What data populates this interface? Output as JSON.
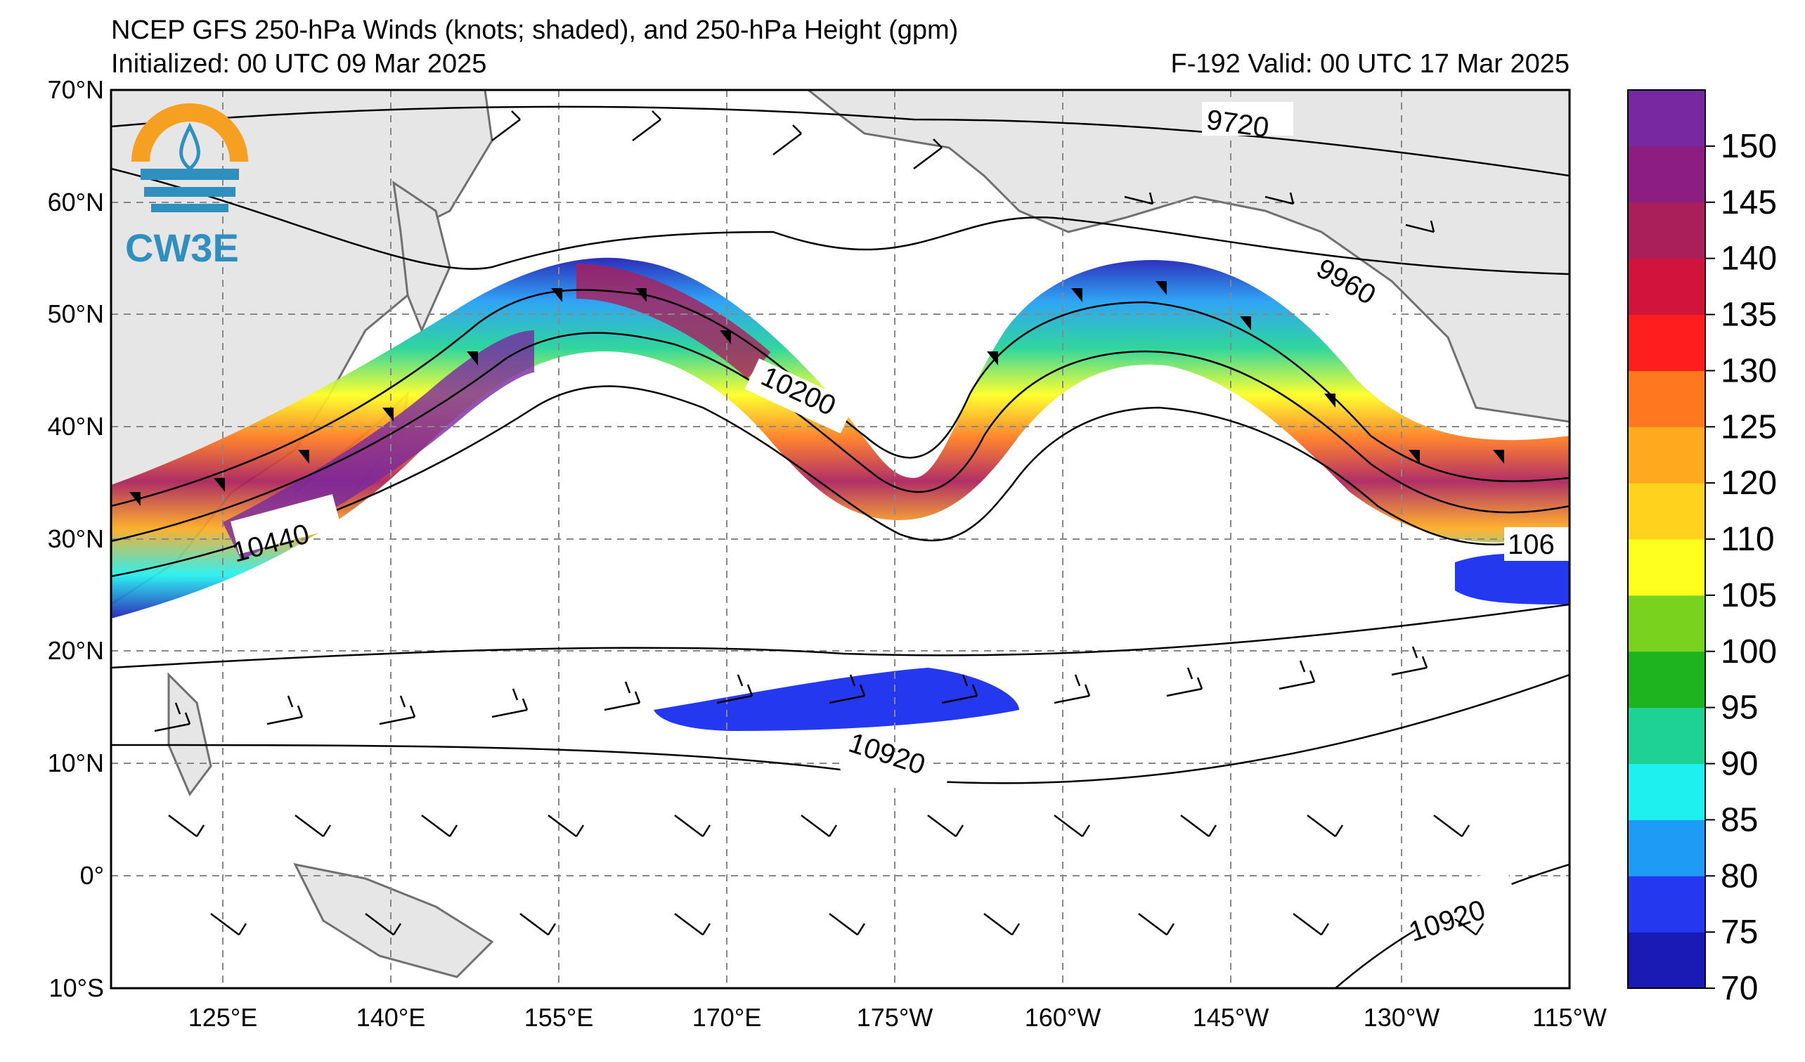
{
  "header": {
    "title": "NCEP GFS 250-hPa Winds (knots; shaded), and 250-hPa Height (gpm)",
    "initialized": "Initialized: 00 UTC 09 Mar 2025",
    "valid": "F-192  Valid: 00 UTC 17 Mar 2025"
  },
  "logo": {
    "text": "CW3E"
  },
  "map": {
    "lat_ticks": [
      "70°N",
      "60°N",
      "50°N",
      "40°N",
      "30°N",
      "20°N",
      "10°N",
      "0°",
      "10°S"
    ],
    "lon_ticks": [
      "125°E",
      "140°E",
      "155°E",
      "170°E",
      "175°W",
      "160°W",
      "145°W",
      "130°W",
      "115°W"
    ],
    "contour_labels": [
      "9720",
      "9960",
      "10200",
      "10440",
      "106",
      "10920",
      "10920"
    ]
  },
  "colorbar": {
    "ticks": [
      "150",
      "145",
      "140",
      "135",
      "130",
      "125",
      "120",
      "110",
      "105",
      "100",
      "95",
      "90",
      "85",
      "80",
      "75",
      "70"
    ],
    "colors": [
      "#1a1ab4",
      "#2438f0",
      "#1e9cf5",
      "#1ef0f0",
      "#1ed296",
      "#1eb41e",
      "#78d21e",
      "#ffff1e",
      "#ffd21e",
      "#ffaa1e",
      "#ff781e",
      "#ff1e1e",
      "#d2143c",
      "#aa1e5a",
      "#8c1e82",
      "#7828a0"
    ]
  }
}
